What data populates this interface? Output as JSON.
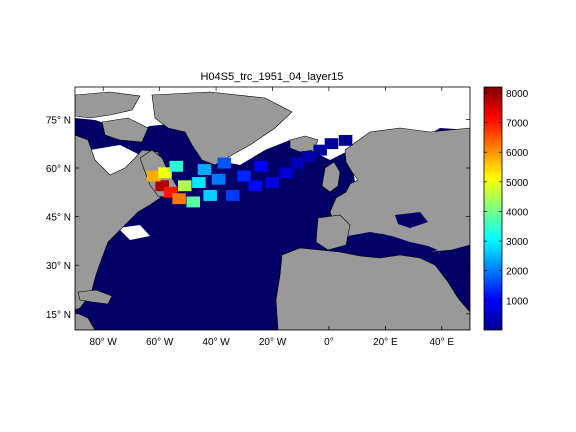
{
  "chart_data": {
    "type": "heatmap",
    "title": "H04S5_trc_1951_04_layer15",
    "xlabel": "",
    "ylabel": "",
    "x_ticks": [
      {
        "value": -80,
        "label": "80° W"
      },
      {
        "value": -60,
        "label": "60° W"
      },
      {
        "value": -40,
        "label": "40° W"
      },
      {
        "value": -20,
        "label": "20° W"
      },
      {
        "value": 0,
        "label": "0°"
      },
      {
        "value": 20,
        "label": "20° E"
      },
      {
        "value": 40,
        "label": "40° E"
      }
    ],
    "y_ticks": [
      {
        "value": 15,
        "label": "15° N"
      },
      {
        "value": 30,
        "label": "30° N"
      },
      {
        "value": 45,
        "label": "45° N"
      },
      {
        "value": 60,
        "label": "60° N"
      },
      {
        "value": 75,
        "label": "75° N"
      }
    ],
    "xlim": [
      -90,
      50
    ],
    "ylim": [
      10,
      85
    ],
    "colorbar": {
      "colormap": "jet",
      "ticks": [
        1000,
        2000,
        3000,
        4000,
        5000,
        6000,
        7000,
        8000
      ],
      "labels": [
        "1000",
        "2000",
        "3000",
        "4000",
        "5000",
        "6000",
        "7000",
        "8000"
      ],
      "range": [
        0,
        8200
      ]
    },
    "colors": {
      "land": "#999999",
      "ocean": "#000066",
      "no_data": "#ffffff",
      "axes": "#000000"
    },
    "grid": false,
    "tracer_field": [
      {
        "lon": -60,
        "lat": 55,
        "value": 7800
      },
      {
        "lon": -57,
        "lat": 53,
        "value": 7000
      },
      {
        "lon": -54,
        "lat": 51,
        "value": 6200
      },
      {
        "lon": -63,
        "lat": 58,
        "value": 5800
      },
      {
        "lon": -59,
        "lat": 59,
        "value": 5000
      },
      {
        "lon": -52,
        "lat": 55,
        "value": 4500
      },
      {
        "lon": -49,
        "lat": 50,
        "value": 3800
      },
      {
        "lon": -55,
        "lat": 61,
        "value": 3400
      },
      {
        "lon": -47,
        "lat": 56,
        "value": 2900
      },
      {
        "lon": -45,
        "lat": 60,
        "value": 2400
      },
      {
        "lon": -43,
        "lat": 52,
        "value": 2700
      },
      {
        "lon": -40,
        "lat": 57,
        "value": 2000
      },
      {
        "lon": -38,
        "lat": 62,
        "value": 1700
      },
      {
        "lon": -35,
        "lat": 52,
        "value": 1500
      },
      {
        "lon": -31,
        "lat": 58,
        "value": 1300
      },
      {
        "lon": -27,
        "lat": 55,
        "value": 1100
      },
      {
        "lon": -25,
        "lat": 61,
        "value": 950
      },
      {
        "lon": -21,
        "lat": 56,
        "value": 800
      },
      {
        "lon": -16,
        "lat": 59,
        "value": 650
      },
      {
        "lon": -12,
        "lat": 62,
        "value": 500
      },
      {
        "lon": -8,
        "lat": 64,
        "value": 380
      },
      {
        "lon": -4,
        "lat": 66,
        "value": 280
      },
      {
        "lon": 0,
        "lat": 68,
        "value": 200
      },
      {
        "lon": 5,
        "lat": 69,
        "value": 150
      }
    ]
  }
}
